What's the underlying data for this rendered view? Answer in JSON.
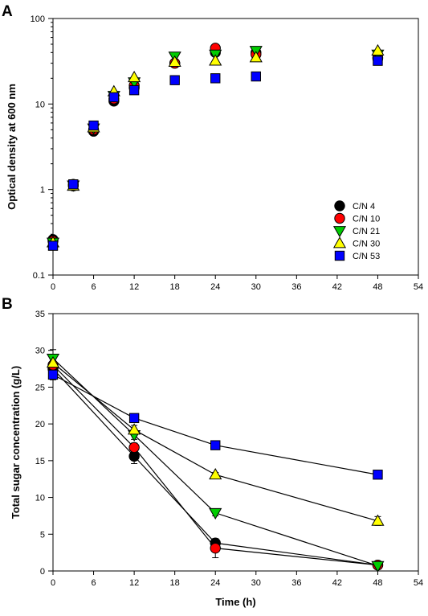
{
  "chart_data": [
    {
      "panel_label": "A",
      "type": "scatter",
      "ylabel": "Optical density at 600 nm",
      "xlabel": "",
      "xlim": [
        0,
        54
      ],
      "ylim": [
        0.1,
        100
      ],
      "yscale": "log",
      "xticks": [
        0,
        6,
        12,
        18,
        24,
        30,
        36,
        42,
        48,
        54
      ],
      "yticks": [
        0.1,
        1,
        10,
        100
      ],
      "ytick_labels": [
        "0.1",
        "1",
        "10",
        "100"
      ],
      "legend_position": "center-right",
      "series": [
        {
          "name": "C/N 4",
          "marker": "circle",
          "color": "#000000",
          "x": [
            0,
            3,
            6,
            9,
            12,
            18,
            24,
            30,
            48
          ],
          "y": [
            0.26,
            1.1,
            4.8,
            10.8,
            15.5,
            30,
            40,
            40,
            34
          ]
        },
        {
          "name": "C/N 10",
          "marker": "circle",
          "color": "#ff0000",
          "x": [
            0,
            3,
            6,
            9,
            12,
            18,
            24,
            30,
            48
          ],
          "y": [
            0.25,
            1.15,
            5.0,
            11.5,
            16.5,
            30,
            45,
            38,
            35
          ]
        },
        {
          "name": "C/N 21",
          "marker": "triangle-down",
          "color": "#00cc00",
          "x": [
            0,
            3,
            6,
            9,
            12,
            18,
            24,
            30,
            48
          ],
          "y": [
            0.24,
            1.12,
            5.2,
            12.5,
            18,
            36,
            38,
            42,
            38
          ]
        },
        {
          "name": "C/N 30",
          "marker": "triangle-up",
          "color": "#ffff00",
          "x": [
            0,
            3,
            6,
            9,
            12,
            18,
            24,
            30,
            48
          ],
          "y": [
            0.24,
            1.1,
            5.3,
            14,
            20.5,
            31,
            32,
            35,
            42
          ]
        },
        {
          "name": "C/N 53",
          "marker": "square",
          "color": "#0000ff",
          "x": [
            0,
            3,
            6,
            9,
            12,
            18,
            24,
            30,
            48
          ],
          "y": [
            0.22,
            1.15,
            5.6,
            12,
            14.5,
            19,
            20,
            21,
            32
          ]
        }
      ]
    },
    {
      "panel_label": "B",
      "type": "line",
      "ylabel": "Total sugar concentration (g/L)",
      "xlabel": "Time (h)",
      "xlim": [
        0,
        54
      ],
      "ylim": [
        0,
        35
      ],
      "yscale": "linear",
      "xticks": [
        0,
        6,
        12,
        18,
        24,
        30,
        36,
        42,
        48,
        54
      ],
      "yticks": [
        0,
        5,
        10,
        15,
        20,
        25,
        30,
        35
      ],
      "series": [
        {
          "name": "C/N 4",
          "marker": "circle",
          "color": "#000000",
          "x": [
            0,
            12,
            24,
            48
          ],
          "y": [
            27.5,
            15.6,
            3.8,
            0.8
          ],
          "err": [
            0.6,
            1.0,
            0.4,
            0.3
          ]
        },
        {
          "name": "C/N 10",
          "marker": "circle",
          "color": "#ff0000",
          "x": [
            0,
            12,
            24,
            48
          ],
          "y": [
            28.0,
            16.8,
            3.1,
            0.8
          ],
          "err": [
            0.6,
            0.6,
            1.3,
            0.4
          ]
        },
        {
          "name": "C/N 21",
          "marker": "triangle-down",
          "color": "#00cc00",
          "x": [
            0,
            12,
            24,
            48
          ],
          "y": [
            28.9,
            18.5,
            7.9,
            0.7
          ],
          "err": [
            1.2,
            0.6,
            0.4,
            0.2
          ]
        },
        {
          "name": "C/N 30",
          "marker": "triangle-up",
          "color": "#ffff00",
          "x": [
            0,
            12,
            24,
            48
          ],
          "y": [
            28.3,
            19.2,
            13.1,
            6.8
          ],
          "err": [
            0.6,
            0.6,
            0.3,
            0.6
          ]
        },
        {
          "name": "C/N 53",
          "marker": "square",
          "color": "#0000ff",
          "x": [
            0,
            12,
            24,
            48
          ],
          "y": [
            26.7,
            20.8,
            17.1,
            13.1
          ],
          "err": [
            0.7,
            0.3,
            0.5,
            0.3
          ]
        }
      ]
    }
  ]
}
